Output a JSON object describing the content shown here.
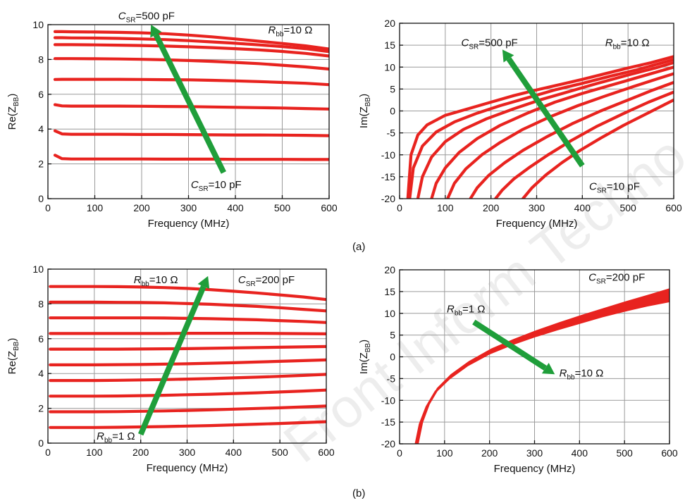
{
  "panel_labels": [
    "(a)",
    "(b)"
  ],
  "watermark": "Front Inform Techno",
  "colors": {
    "curve": "#e8231f",
    "arrow": "#1f9e3a",
    "grid": "#9a9a9a"
  },
  "chart_data": [
    {
      "type": "line",
      "xlabel": "Frequency (MHz)",
      "ylabel_main": "Re(Z",
      "ylabel_sub": "BB",
      "ylabel_end": ")",
      "xlim": [
        0,
        600
      ],
      "ylim": [
        0,
        10
      ],
      "xticks": [
        0,
        100,
        200,
        300,
        400,
        500,
        600
      ],
      "yticks": [
        0,
        2,
        4,
        6,
        8,
        10
      ],
      "grid": true,
      "annotations": [
        {
          "main": "C",
          "sub": "SR",
          "rest": "=500 pF",
          "x": 150,
          "y": 10.3
        },
        {
          "main": "R",
          "sub": "bb",
          "rest": "=10 Ω",
          "x": 470,
          "y": 9.5
        },
        {
          "main": "C",
          "sub": "SR",
          "rest": "=10 pF",
          "x": 305,
          "y": 0.6
        }
      ],
      "arrow": {
        "from": [
          375,
          1.5
        ],
        "to": [
          220,
          10.0
        ]
      },
      "x": [
        15,
        30,
        50,
        100,
        150,
        200,
        250,
        300,
        350,
        400,
        450,
        500,
        550,
        600
      ],
      "series": [
        {
          "values": [
            9.6,
            9.6,
            9.59,
            9.58,
            9.56,
            9.53,
            9.48,
            9.4,
            9.3,
            9.18,
            9.05,
            8.92,
            8.78,
            8.6
          ]
        },
        {
          "values": [
            9.25,
            9.25,
            9.24,
            9.23,
            9.21,
            9.18,
            9.14,
            9.08,
            9.01,
            8.93,
            8.84,
            8.74,
            8.62,
            8.45
          ]
        },
        {
          "values": [
            8.85,
            8.85,
            8.85,
            8.84,
            8.82,
            8.8,
            8.77,
            8.73,
            8.68,
            8.62,
            8.55,
            8.46,
            8.35,
            8.2
          ]
        },
        {
          "values": [
            8.05,
            8.05,
            8.05,
            8.04,
            8.03,
            8.01,
            7.98,
            7.94,
            7.89,
            7.83,
            7.76,
            7.67,
            7.57,
            7.45
          ]
        },
        {
          "values": [
            6.85,
            6.86,
            6.86,
            6.86,
            6.86,
            6.85,
            6.84,
            6.83,
            6.8,
            6.77,
            6.73,
            6.68,
            6.63,
            6.55
          ]
        },
        {
          "values": [
            5.4,
            5.33,
            5.32,
            5.32,
            5.32,
            5.31,
            5.3,
            5.29,
            5.27,
            5.25,
            5.23,
            5.21,
            5.18,
            5.15
          ]
        },
        {
          "values": [
            3.9,
            3.72,
            3.7,
            3.7,
            3.7,
            3.69,
            3.69,
            3.68,
            3.67,
            3.66,
            3.66,
            3.65,
            3.64,
            3.62
          ]
        },
        {
          "values": [
            2.5,
            2.3,
            2.28,
            2.28,
            2.28,
            2.28,
            2.27,
            2.27,
            2.27,
            2.26,
            2.26,
            2.26,
            2.25,
            2.25
          ]
        }
      ]
    },
    {
      "type": "line",
      "xlabel": "Frequency (MHz)",
      "ylabel_main": "Im(Z",
      "ylabel_sub": "BB",
      "ylabel_end": ")",
      "xlim": [
        0,
        600
      ],
      "ylim": [
        -20,
        20
      ],
      "xticks": [
        0,
        100,
        200,
        300,
        400,
        500,
        600
      ],
      "yticks": [
        -20,
        -15,
        -10,
        -5,
        0,
        5,
        10,
        15,
        20
      ],
      "grid": true,
      "annotations": [
        {
          "main": "C",
          "sub": "SR",
          "rest": "=500 pF",
          "x": 135,
          "y": 14.8
        },
        {
          "main": "R",
          "sub": "bb",
          "rest": "=10 Ω",
          "x": 450,
          "y": 14.8
        },
        {
          "main": "C",
          "sub": "SR",
          "rest": "=10 pF",
          "x": 415,
          "y": -18.0
        }
      ],
      "arrow": {
        "from": [
          400,
          -12.5
        ],
        "to": [
          225,
          14.0
        ]
      },
      "series": [
        {
          "x0": 18,
          "values": [
            [
              18,
              -20
            ],
            [
              25,
              -10
            ],
            [
              40,
              -5.5
            ],
            [
              60,
              -3.2
            ],
            [
              100,
              -1.0
            ],
            [
              150,
              0.5
            ],
            [
              200,
              2.0
            ],
            [
              250,
              3.5
            ],
            [
              300,
              4.8
            ],
            [
              350,
              6.0
            ],
            [
              400,
              7.2
            ],
            [
              450,
              8.5
            ],
            [
              500,
              9.8
            ],
            [
              550,
              11.0
            ],
            [
              600,
              12.4
            ]
          ]
        },
        {
          "values": [
            [
              22,
              -20
            ],
            [
              30,
              -13
            ],
            [
              50,
              -8.0
            ],
            [
              80,
              -4.8
            ],
            [
              120,
              -2.5
            ],
            [
              170,
              -0.5
            ],
            [
              220,
              1.2
            ],
            [
              280,
              3.0
            ],
            [
              340,
              4.8
            ],
            [
              400,
              6.3
            ],
            [
              460,
              7.9
            ],
            [
              520,
              9.4
            ],
            [
              600,
              11.7
            ]
          ]
        },
        {
          "values": [
            [
              40,
              -20
            ],
            [
              50,
              -15
            ],
            [
              70,
              -10.5
            ],
            [
              100,
              -7.0
            ],
            [
              140,
              -4.2
            ],
            [
              190,
              -1.8
            ],
            [
              250,
              0.5
            ],
            [
              310,
              2.6
            ],
            [
              370,
              4.4
            ],
            [
              430,
              6.2
            ],
            [
              500,
              8.2
            ],
            [
              560,
              9.8
            ],
            [
              600,
              11.0
            ]
          ]
        },
        {
          "values": [
            [
              70,
              -20
            ],
            [
              80,
              -16.5
            ],
            [
              100,
              -13.0
            ],
            [
              130,
              -9.5
            ],
            [
              170,
              -6.3
            ],
            [
              220,
              -3.3
            ],
            [
              280,
              -0.5
            ],
            [
              340,
              2.0
            ],
            [
              400,
              4.0
            ],
            [
              460,
              5.8
            ],
            [
              520,
              7.6
            ],
            [
              600,
              10.0
            ]
          ]
        },
        {
          "values": [
            [
              105,
              -20
            ],
            [
              120,
              -16.5
            ],
            [
              145,
              -13.2
            ],
            [
              180,
              -10.0
            ],
            [
              220,
              -7.2
            ],
            [
              270,
              -4.2
            ],
            [
              330,
              -1.3
            ],
            [
              390,
              1.2
            ],
            [
              450,
              3.4
            ],
            [
              510,
              5.5
            ],
            [
              560,
              7.2
            ],
            [
              600,
              8.5
            ]
          ]
        },
        {
          "values": [
            [
              155,
              -20
            ],
            [
              170,
              -17.5
            ],
            [
              195,
              -14.7
            ],
            [
              230,
              -11.8
            ],
            [
              270,
              -9.0
            ],
            [
              320,
              -6.0
            ],
            [
              380,
              -2.8
            ],
            [
              440,
              0.0
            ],
            [
              500,
              2.5
            ],
            [
              550,
              4.6
            ],
            [
              600,
              6.5
            ]
          ]
        },
        {
          "values": [
            [
              210,
              -20
            ],
            [
              225,
              -18.0
            ],
            [
              250,
              -15.5
            ],
            [
              285,
              -12.8
            ],
            [
              325,
              -10.0
            ],
            [
              375,
              -6.8
            ],
            [
              430,
              -3.6
            ],
            [
              490,
              -0.6
            ],
            [
              545,
              2.0
            ],
            [
              600,
              4.3
            ]
          ]
        },
        {
          "values": [
            [
              270,
              -20
            ],
            [
              290,
              -17.5
            ],
            [
              320,
              -14.6
            ],
            [
              355,
              -11.8
            ],
            [
              395,
              -9.0
            ],
            [
              440,
              -6.2
            ],
            [
              490,
              -3.3
            ],
            [
              545,
              -0.4
            ],
            [
              600,
              2.5
            ]
          ]
        }
      ]
    },
    {
      "type": "line",
      "xlabel": "Frequency (MHz)",
      "ylabel_main": "Re(Z",
      "ylabel_sub": "BB",
      "ylabel_end": ")",
      "xlim": [
        0,
        600
      ],
      "ylim": [
        0,
        10
      ],
      "xticks": [
        0,
        100,
        200,
        300,
        400,
        500,
        600
      ],
      "yticks": [
        0,
        2,
        4,
        6,
        8,
        10
      ],
      "grid": true,
      "annotations": [
        {
          "main": "R",
          "sub": "bb",
          "rest": "=10 Ω",
          "x": 185,
          "y": 9.2
        },
        {
          "main": "C",
          "sub": "SR",
          "rest": "=200 pF",
          "x": 410,
          "y": 9.2
        },
        {
          "main": "R",
          "sub": "bb",
          "rest": "=1 Ω",
          "x": 105,
          "y": 0.2
        }
      ],
      "arrow": {
        "from": [
          200,
          0.5
        ],
        "to": [
          345,
          9.6
        ]
      },
      "x": [
        5,
        50,
        100,
        150,
        200,
        250,
        300,
        350,
        400,
        450,
        500,
        550,
        600
      ],
      "series": [
        {
          "values": [
            9.0,
            9.0,
            9.0,
            8.99,
            8.97,
            8.94,
            8.89,
            8.82,
            8.73,
            8.63,
            8.52,
            8.4,
            8.25
          ]
        },
        {
          "values": [
            8.1,
            8.1,
            8.1,
            8.09,
            8.08,
            8.06,
            8.02,
            7.98,
            7.92,
            7.86,
            7.78,
            7.69,
            7.6
          ]
        },
        {
          "values": [
            7.2,
            7.2,
            7.2,
            7.2,
            7.2,
            7.19,
            7.17,
            7.15,
            7.12,
            7.09,
            7.04,
            6.99,
            6.93
          ]
        },
        {
          "values": [
            6.3,
            6.3,
            6.3,
            6.3,
            6.3,
            6.3,
            6.31,
            6.31,
            6.31,
            6.31,
            6.3,
            6.29,
            6.28
          ]
        },
        {
          "values": [
            5.4,
            5.4,
            5.4,
            5.4,
            5.41,
            5.42,
            5.43,
            5.45,
            5.47,
            5.49,
            5.51,
            5.53,
            5.55
          ]
        },
        {
          "values": [
            4.5,
            4.5,
            4.5,
            4.51,
            4.52,
            4.54,
            4.56,
            4.59,
            4.62,
            4.66,
            4.7,
            4.74,
            4.78
          ]
        },
        {
          "values": [
            3.6,
            3.6,
            3.6,
            3.61,
            3.63,
            3.65,
            3.68,
            3.71,
            3.75,
            3.79,
            3.84,
            3.89,
            3.95
          ]
        },
        {
          "values": [
            2.7,
            2.7,
            2.7,
            2.71,
            2.73,
            2.75,
            2.78,
            2.81,
            2.85,
            2.89,
            2.94,
            2.99,
            3.05
          ]
        },
        {
          "values": [
            1.8,
            1.8,
            1.8,
            1.81,
            1.83,
            1.85,
            1.88,
            1.91,
            1.95,
            1.99,
            2.03,
            2.08,
            2.13
          ]
        },
        {
          "values": [
            0.9,
            0.9,
            0.9,
            0.91,
            0.93,
            0.95,
            0.98,
            1.01,
            1.05,
            1.09,
            1.13,
            1.18,
            1.23
          ]
        }
      ]
    },
    {
      "type": "area",
      "xlabel": "Frequency (MHz)",
      "ylabel_main": "Im(Z",
      "ylabel_sub": "BB",
      "ylabel_end": ")",
      "xlim": [
        0,
        600
      ],
      "ylim": [
        -20,
        20
      ],
      "xticks": [
        0,
        100,
        200,
        300,
        400,
        500,
        600
      ],
      "yticks": [
        -20,
        -15,
        -10,
        -5,
        0,
        5,
        10,
        15,
        20
      ],
      "grid": true,
      "annotations": [
        {
          "main": "C",
          "sub": "SR",
          "rest": "=200 pF",
          "x": 420,
          "y": 17.5
        },
        {
          "main": "R",
          "sub": "bb",
          "rest": "=1 Ω",
          "x": 105,
          "y": 10.2
        },
        {
          "main": "R",
          "sub": "bb",
          "rest": "=10 Ω",
          "x": 355,
          "y": -4.5
        }
      ],
      "arrow": {
        "from": [
          165,
          8.0
        ],
        "to": [
          345,
          -4.0
        ]
      },
      "series": [
        {
          "values": [
            [
              36,
              -20
            ],
            [
              45,
              -15.5
            ],
            [
              60,
              -11.5
            ],
            [
              80,
              -8.0
            ],
            [
              110,
              -5.0
            ],
            [
              150,
              -2.0
            ],
            [
              200,
              0.8
            ],
            [
              250,
              2.9
            ],
            [
              300,
              4.7
            ],
            [
              350,
              6.3
            ],
            [
              400,
              7.8
            ],
            [
              450,
              9.3
            ],
            [
              500,
              10.6
            ],
            [
              550,
              11.8
            ],
            [
              600,
              12.8
            ]
          ]
        },
        {
          "values": [
            [
              40,
              -20
            ],
            [
              50,
              -15.0
            ],
            [
              65,
              -10.8
            ],
            [
              85,
              -7.3
            ],
            [
              115,
              -4.2
            ],
            [
              155,
              -1.2
            ],
            [
              205,
              1.7
            ],
            [
              255,
              3.9
            ],
            [
              305,
              5.9
            ],
            [
              355,
              7.7
            ],
            [
              405,
              9.4
            ],
            [
              455,
              11.0
            ],
            [
              505,
              12.6
            ],
            [
              555,
              14.1
            ],
            [
              600,
              15.5
            ]
          ]
        }
      ]
    }
  ]
}
